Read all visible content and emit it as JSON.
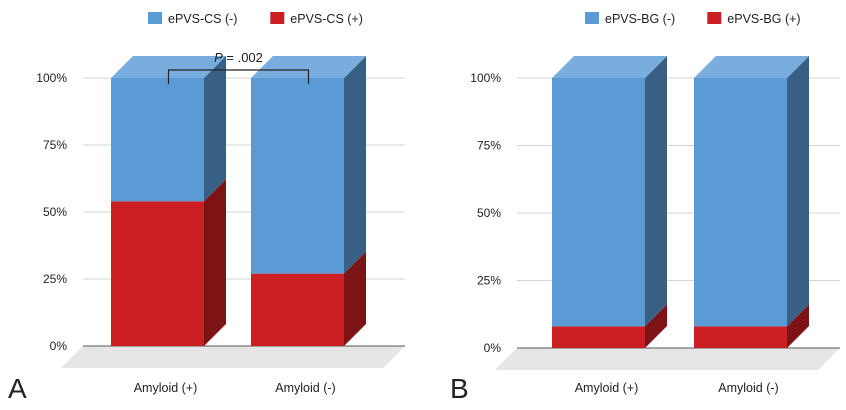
{
  "figure": {
    "panels": [
      {
        "letter": "A"
      },
      {
        "letter": "B"
      }
    ]
  },
  "chart_data": [
    {
      "type": "bar",
      "stacked": true,
      "three_d": true,
      "categories": [
        "Amyloid (+)",
        "Amyloid (-)"
      ],
      "series": [
        {
          "name": "ePVS-CS (+)",
          "values": [
            54,
            27
          ],
          "color": "#cc1f24"
        },
        {
          "name": "ePVS-CS (-)",
          "values": [
            46,
            73
          ],
          "color": "#5b9bd5"
        }
      ],
      "legend": [
        "ePVS-CS (-)",
        "ePVS-CS (+)"
      ],
      "legend_position": "top",
      "y_ticks": [
        "0%",
        "25%",
        "50%",
        "75%",
        "100%"
      ],
      "ylim": [
        0,
        100
      ],
      "grid": true,
      "annotation": {
        "label": "P",
        "value": "= .002"
      }
    },
    {
      "type": "bar",
      "stacked": true,
      "three_d": true,
      "categories": [
        "Amyloid (+)",
        "Amyloid (-)"
      ],
      "series": [
        {
          "name": "ePVS-BG (+)",
          "values": [
            8,
            8
          ],
          "color": "#cc1f24"
        },
        {
          "name": "ePVS-BG (-)",
          "values": [
            92,
            92
          ],
          "color": "#5b9bd5"
        }
      ],
      "legend": [
        "ePVS-BG (-)",
        "ePVS-BG (+)"
      ],
      "legend_position": "top",
      "y_ticks": [
        "0%",
        "25%",
        "50%",
        "75%",
        "100%"
      ],
      "ylim": [
        0,
        100
      ],
      "grid": true
    }
  ]
}
